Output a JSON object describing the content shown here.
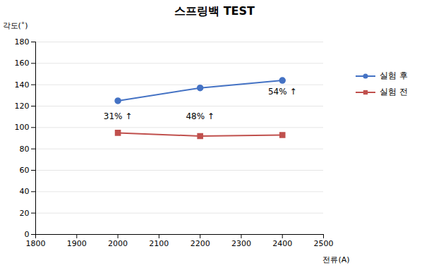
{
  "chart_data": {
    "type": "line",
    "title": "스프링백 TEST",
    "xlabel": "전류(A)",
    "ylabel": "각도(˚)",
    "x": [
      2000,
      2200,
      2400
    ],
    "series": [
      {
        "name": "실험 후",
        "color": "#4472C4",
        "marker": "circle",
        "values": [
          125,
          137,
          144
        ]
      },
      {
        "name": "실험 전",
        "color": "#C0504D",
        "marker": "square",
        "values": [
          95,
          92,
          93
        ]
      }
    ],
    "annotations": [
      {
        "x": 2000,
        "y": 108,
        "text": "31% ↑"
      },
      {
        "x": 2200,
        "y": 108,
        "text": "48% ↑"
      },
      {
        "x": 2400,
        "y": 131,
        "text": "54% ↑"
      }
    ],
    "xlim": [
      1800,
      2500
    ],
    "xticks": [
      1800,
      1900,
      2000,
      2100,
      2200,
      2300,
      2400,
      2500
    ],
    "ylim": [
      0,
      180
    ],
    "yticks": [
      0,
      20,
      40,
      60,
      80,
      100,
      120,
      140,
      160,
      180
    ],
    "grid": "y",
    "legend": "right"
  }
}
